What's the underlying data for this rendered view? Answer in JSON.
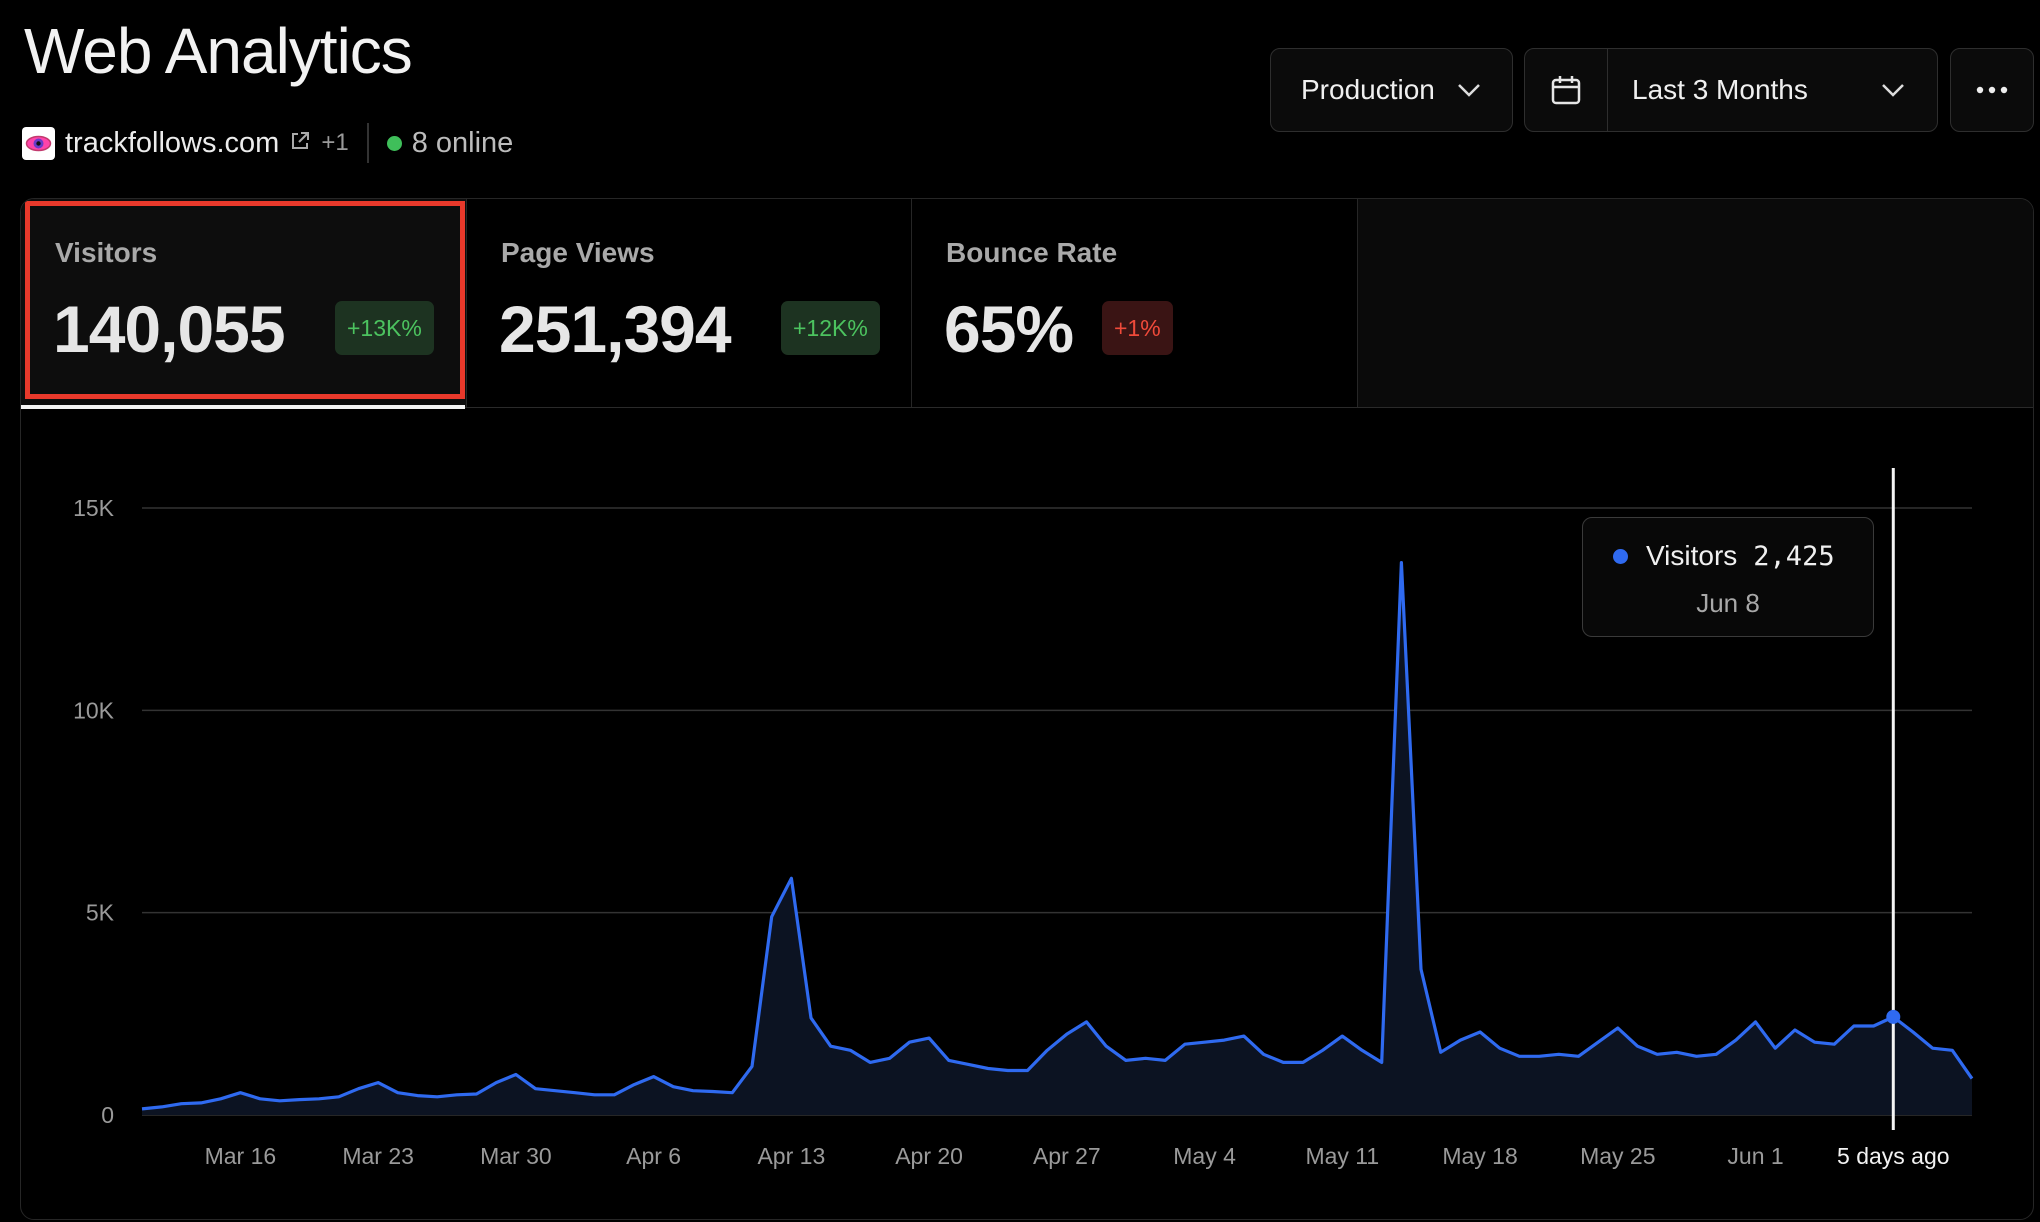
{
  "header": {
    "title": "Web Analytics",
    "site": "trackfollows.com",
    "extra_sites": "+1",
    "online": "8 online"
  },
  "controls": {
    "environment": "Production",
    "date_range": "Last 3 Months"
  },
  "metrics": [
    {
      "label": "Visitors",
      "value": "140,055",
      "change": "+13K%",
      "trend": "up"
    },
    {
      "label": "Page Views",
      "value": "251,394",
      "change": "+12K%",
      "trend": "up"
    },
    {
      "label": "Bounce Rate",
      "value": "65%",
      "change": "+1%",
      "trend": "down"
    }
  ],
  "tooltip": {
    "series": "Visitors",
    "value": "2,425",
    "date": "Jun 8"
  },
  "colors": {
    "line": "#2f6af0",
    "badge_up": "#4cc35f",
    "badge_down": "#ef4a3a",
    "highlight": "#e8392b"
  },
  "chart_data": {
    "type": "area",
    "ylim": [
      0,
      15000
    ],
    "ytick_labels": [
      "0",
      "5K",
      "10K",
      "15K"
    ],
    "yticks": [
      0,
      5000,
      10000,
      15000
    ],
    "xtick_labels": [
      "Mar 16",
      "Mar 23",
      "Mar 30",
      "Apr 6",
      "Apr 13",
      "Apr 20",
      "Apr 27",
      "May 4",
      "May 11",
      "May 18",
      "May 25",
      "Jun 1",
      "5 days ago"
    ],
    "xtick_index": [
      5,
      12,
      19,
      26,
      33,
      40,
      47,
      54,
      61,
      68,
      75,
      82,
      89
    ],
    "grid": true,
    "highlight_index": 89,
    "series": [
      {
        "name": "Visitors",
        "values": [
          150,
          200,
          280,
          300,
          400,
          550,
          400,
          350,
          380,
          400,
          450,
          650,
          800,
          550,
          480,
          450,
          500,
          520,
          800,
          1000,
          650,
          600,
          550,
          500,
          500,
          750,
          950,
          700,
          600,
          580,
          550,
          1200,
          4900,
          5850,
          2400,
          1700,
          1600,
          1300,
          1400,
          1800,
          1900,
          1350,
          1250,
          1150,
          1100,
          1100,
          1600,
          2000,
          2300,
          1700,
          1350,
          1400,
          1350,
          1750,
          1800,
          1850,
          1950,
          1500,
          1300,
          1300,
          1600,
          1950,
          1600,
          1300,
          13650,
          3600,
          1550,
          1850,
          2050,
          1650,
          1450,
          1450,
          1500,
          1450,
          1800,
          2150,
          1700,
          1500,
          1550,
          1450,
          1500,
          1850,
          2300,
          1650,
          2100,
          1800,
          1750,
          2200,
          2200,
          2425,
          2050,
          1650,
          1600,
          900
        ]
      }
    ]
  }
}
